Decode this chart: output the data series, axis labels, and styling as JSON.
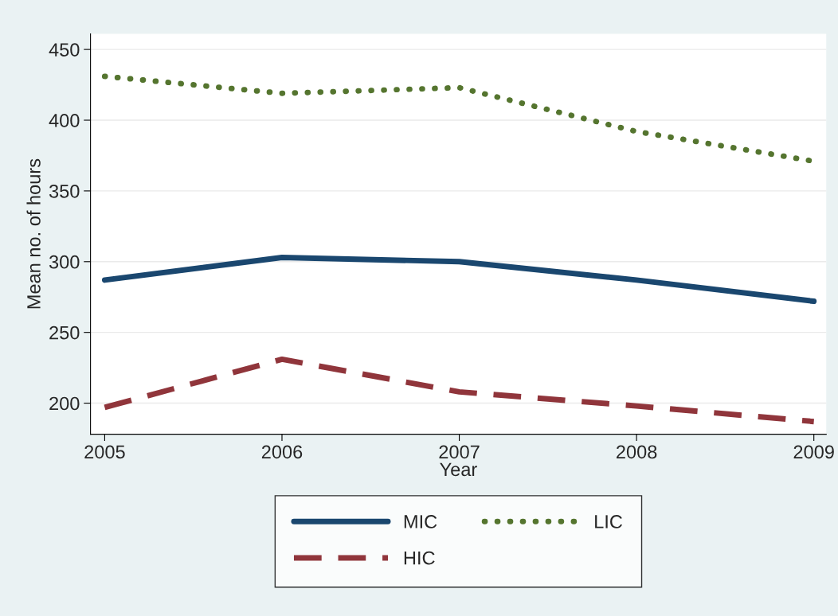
{
  "chart_data": {
    "type": "line",
    "xlabel": "Year",
    "ylabel": "Mean no. of hours",
    "x": [
      2005,
      2006,
      2007,
      2008,
      2009
    ],
    "series": [
      {
        "name": "MIC",
        "color": "#1a476f",
        "line_style": "solid",
        "values": [
          287,
          303,
          300,
          287,
          272
        ]
      },
      {
        "name": "HIC",
        "color": "#90353b",
        "line_style": "dashed",
        "values": [
          197,
          231,
          208,
          198,
          187
        ]
      },
      {
        "name": "LIC",
        "color": "#55752f",
        "line_style": "dotted",
        "values": [
          431,
          419,
          423,
          392,
          371
        ]
      }
    ],
    "xlim": [
      2004.92,
      2009.07
    ],
    "xticks": [
      2005,
      2006,
      2007,
      2008,
      2009
    ],
    "ylim": [
      178,
      461
    ],
    "yticks": [
      200,
      250,
      300,
      350,
      400,
      450
    ],
    "grid": "y",
    "legend": "bottom"
  }
}
